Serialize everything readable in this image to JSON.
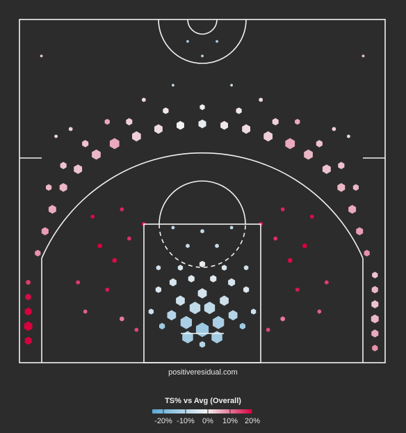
{
  "credit": "positiveresidual.com",
  "legend": {
    "title": "TS% vs Avg (Overall)",
    "ticks": [
      {
        "value": -20,
        "label": "-20%"
      },
      {
        "value": -10,
        "label": "-10%"
      },
      {
        "value": 0,
        "label": "0%"
      },
      {
        "value": 10,
        "label": "10%"
      },
      {
        "value": 20,
        "label": "20%"
      }
    ],
    "range": [
      -25,
      20
    ],
    "colors": {
      "low": "#5aa8d6",
      "mid": "#f2f2f2",
      "high": "#d7003f"
    }
  },
  "colors": {
    "background": "#2c2c2c",
    "court_lines": "#f2f2f2"
  },
  "chart_data": {
    "type": "hexbin",
    "title": "",
    "xlabel": "",
    "ylabel": "",
    "x_range_ft": [
      -25,
      25
    ],
    "y_range_ft": [
      0,
      47
    ],
    "encoding": "size = shot frequency, color = TS% vs average",
    "hexes": [
      {
        "x": 0,
        "y": 4.5,
        "size": 1.0,
        "ts": -14
      },
      {
        "x": -2.2,
        "y": 5.5,
        "size": 0.9,
        "ts": -12
      },
      {
        "x": 2.2,
        "y": 5.5,
        "size": 0.9,
        "ts": -12
      },
      {
        "x": -4.2,
        "y": 6.5,
        "size": 0.7,
        "ts": -10
      },
      {
        "x": 4.2,
        "y": 6.5,
        "size": 0.7,
        "ts": -10
      },
      {
        "x": -1,
        "y": 7.5,
        "size": 0.85,
        "ts": -8
      },
      {
        "x": 1,
        "y": 7.5,
        "size": 0.85,
        "ts": -8
      },
      {
        "x": -3,
        "y": 8.5,
        "size": 0.7,
        "ts": -6
      },
      {
        "x": 3,
        "y": 8.5,
        "size": 0.7,
        "ts": -6
      },
      {
        "x": 0,
        "y": 9.5,
        "size": 0.7,
        "ts": -5
      },
      {
        "x": -2,
        "y": 3.5,
        "size": 0.85,
        "ts": -13
      },
      {
        "x": 2,
        "y": 3.5,
        "size": 0.85,
        "ts": -13
      },
      {
        "x": 0,
        "y": 2.5,
        "size": 0.45,
        "ts": -10
      },
      {
        "x": -5.5,
        "y": 5,
        "size": 0.45,
        "ts": -14
      },
      {
        "x": 5.5,
        "y": 5,
        "size": 0.45,
        "ts": -14
      },
      {
        "x": -7,
        "y": 7,
        "size": 0.4,
        "ts": -6
      },
      {
        "x": 7,
        "y": 7,
        "size": 0.4,
        "ts": -6
      },
      {
        "x": -6,
        "y": 10,
        "size": 0.45,
        "ts": -4
      },
      {
        "x": 6,
        "y": 10,
        "size": 0.45,
        "ts": -4
      },
      {
        "x": -4,
        "y": 11,
        "size": 0.55,
        "ts": -5
      },
      {
        "x": 4,
        "y": 11,
        "size": 0.55,
        "ts": -5
      },
      {
        "x": -1.5,
        "y": 11.5,
        "size": 0.5,
        "ts": -3
      },
      {
        "x": 1.5,
        "y": 11.5,
        "size": 0.5,
        "ts": -3
      },
      {
        "x": 0,
        "y": 13.5,
        "size": 0.45,
        "ts": -2
      },
      {
        "x": -3,
        "y": 13,
        "size": 0.4,
        "ts": -4
      },
      {
        "x": 3,
        "y": 13,
        "size": 0.4,
        "ts": -4
      },
      {
        "x": -6,
        "y": 13,
        "size": 0.35,
        "ts": -6
      },
      {
        "x": 6,
        "y": 13,
        "size": 0.35,
        "ts": -6
      },
      {
        "x": -2,
        "y": 16,
        "size": 0.3,
        "ts": -7
      },
      {
        "x": 2,
        "y": 16,
        "size": 0.3,
        "ts": -7
      },
      {
        "x": 0,
        "y": 18,
        "size": 0.3,
        "ts": -8
      },
      {
        "x": -4,
        "y": 18.5,
        "size": 0.25,
        "ts": -9
      },
      {
        "x": 4,
        "y": 18.5,
        "size": 0.25,
        "ts": -9
      },
      {
        "x": -9,
        "y": 4.5,
        "size": 0.3,
        "ts": 14
      },
      {
        "x": 9,
        "y": 4.5,
        "size": 0.3,
        "ts": 14
      },
      {
        "x": -11,
        "y": 6,
        "size": 0.35,
        "ts": 10
      },
      {
        "x": 11,
        "y": 6,
        "size": 0.35,
        "ts": 10
      },
      {
        "x": -13,
        "y": 10,
        "size": 0.3,
        "ts": 18
      },
      {
        "x": 13,
        "y": 10,
        "size": 0.3,
        "ts": 18
      },
      {
        "x": -12,
        "y": 14,
        "size": 0.35,
        "ts": 19
      },
      {
        "x": 12,
        "y": 14,
        "size": 0.35,
        "ts": 19
      },
      {
        "x": -14,
        "y": 16,
        "size": 0.35,
        "ts": 20
      },
      {
        "x": 14,
        "y": 16,
        "size": 0.35,
        "ts": 20
      },
      {
        "x": -10,
        "y": 17,
        "size": 0.3,
        "ts": 16
      },
      {
        "x": 10,
        "y": 17,
        "size": 0.3,
        "ts": 16
      },
      {
        "x": -8,
        "y": 19,
        "size": 0.3,
        "ts": 18
      },
      {
        "x": 8,
        "y": 19,
        "size": 0.3,
        "ts": 18
      },
      {
        "x": -15,
        "y": 20,
        "size": 0.3,
        "ts": 19
      },
      {
        "x": 15,
        "y": 20,
        "size": 0.3,
        "ts": 19
      },
      {
        "x": -11,
        "y": 21,
        "size": 0.3,
        "ts": 17
      },
      {
        "x": 11,
        "y": 21,
        "size": 0.3,
        "ts": 17
      },
      {
        "x": -17,
        "y": 11,
        "size": 0.3,
        "ts": 15
      },
      {
        "x": 17,
        "y": 11,
        "size": 0.3,
        "ts": 15
      },
      {
        "x": -16,
        "y": 7,
        "size": 0.3,
        "ts": 12
      },
      {
        "x": 16,
        "y": 7,
        "size": 0.3,
        "ts": 12
      },
      {
        "x": -23.8,
        "y": 3,
        "size": 0.55,
        "ts": 20
      },
      {
        "x": -23.8,
        "y": 5,
        "size": 0.65,
        "ts": 20
      },
      {
        "x": -23.8,
        "y": 7,
        "size": 0.55,
        "ts": 20
      },
      {
        "x": -23.8,
        "y": 9,
        "size": 0.45,
        "ts": 19
      },
      {
        "x": -23.8,
        "y": 11,
        "size": 0.35,
        "ts": 15
      },
      {
        "x": 23.6,
        "y": 2,
        "size": 0.45,
        "ts": 8
      },
      {
        "x": 23.6,
        "y": 4,
        "size": 0.55,
        "ts": 6
      },
      {
        "x": 23.6,
        "y": 6,
        "size": 0.6,
        "ts": 5
      },
      {
        "x": 23.6,
        "y": 8,
        "size": 0.55,
        "ts": 4
      },
      {
        "x": 23.6,
        "y": 10,
        "size": 0.5,
        "ts": 5
      },
      {
        "x": 23.6,
        "y": 12,
        "size": 0.45,
        "ts": 4
      },
      {
        "x": -22.5,
        "y": 15,
        "size": 0.45,
        "ts": 8
      },
      {
        "x": 22.5,
        "y": 15,
        "size": 0.45,
        "ts": 8
      },
      {
        "x": -21.5,
        "y": 18,
        "size": 0.55,
        "ts": 7
      },
      {
        "x": 21.5,
        "y": 18,
        "size": 0.55,
        "ts": 7
      },
      {
        "x": -20.5,
        "y": 21,
        "size": 0.6,
        "ts": 6
      },
      {
        "x": 20.5,
        "y": 21,
        "size": 0.6,
        "ts": 6
      },
      {
        "x": -19,
        "y": 24,
        "size": 0.6,
        "ts": 5
      },
      {
        "x": 19,
        "y": 24,
        "size": 0.6,
        "ts": 5
      },
      {
        "x": -17,
        "y": 26.5,
        "size": 0.65,
        "ts": 4
      },
      {
        "x": 17,
        "y": 26.5,
        "size": 0.65,
        "ts": 4
      },
      {
        "x": -14.5,
        "y": 28.5,
        "size": 0.7,
        "ts": 5
      },
      {
        "x": 14.5,
        "y": 28.5,
        "size": 0.7,
        "ts": 5
      },
      {
        "x": -12,
        "y": 30,
        "size": 0.75,
        "ts": 6
      },
      {
        "x": 12,
        "y": 30,
        "size": 0.75,
        "ts": 6
      },
      {
        "x": -9,
        "y": 31,
        "size": 0.7,
        "ts": 3
      },
      {
        "x": 9,
        "y": 31,
        "size": 0.7,
        "ts": 3
      },
      {
        "x": -6,
        "y": 32,
        "size": 0.65,
        "ts": 2
      },
      {
        "x": 6,
        "y": 32,
        "size": 0.65,
        "ts": 2
      },
      {
        "x": -3,
        "y": 32.5,
        "size": 0.6,
        "ts": 0
      },
      {
        "x": 0,
        "y": 32.7,
        "size": 0.6,
        "ts": -2
      },
      {
        "x": 3,
        "y": 32.5,
        "size": 0.6,
        "ts": 1
      },
      {
        "x": -19,
        "y": 27,
        "size": 0.5,
        "ts": 4
      },
      {
        "x": 19,
        "y": 27,
        "size": 0.5,
        "ts": 4
      },
      {
        "x": -21,
        "y": 24,
        "size": 0.45,
        "ts": 5
      },
      {
        "x": 21,
        "y": 24,
        "size": 0.45,
        "ts": 5
      },
      {
        "x": -16,
        "y": 30,
        "size": 0.5,
        "ts": 4
      },
      {
        "x": 16,
        "y": 30,
        "size": 0.5,
        "ts": 4
      },
      {
        "x": -10,
        "y": 33,
        "size": 0.5,
        "ts": 3
      },
      {
        "x": 10,
        "y": 33,
        "size": 0.5,
        "ts": 3
      },
      {
        "x": -5,
        "y": 34.5,
        "size": 0.45,
        "ts": 1
      },
      {
        "x": 5,
        "y": 34.5,
        "size": 0.45,
        "ts": 1
      },
      {
        "x": 0,
        "y": 35,
        "size": 0.4,
        "ts": -1
      },
      {
        "x": -13,
        "y": 33,
        "size": 0.4,
        "ts": 6
      },
      {
        "x": 13,
        "y": 33,
        "size": 0.4,
        "ts": 6
      },
      {
        "x": -18,
        "y": 32,
        "size": 0.3,
        "ts": 3
      },
      {
        "x": 18,
        "y": 32,
        "size": 0.3,
        "ts": 3
      },
      {
        "x": -8,
        "y": 36,
        "size": 0.3,
        "ts": 2
      },
      {
        "x": 8,
        "y": 36,
        "size": 0.3,
        "ts": 2
      },
      {
        "x": -4,
        "y": 38,
        "size": 0.2,
        "ts": -6
      },
      {
        "x": 4,
        "y": 38,
        "size": 0.2,
        "ts": -6
      },
      {
        "x": 0,
        "y": 42,
        "size": 0.2,
        "ts": -10
      },
      {
        "x": -2,
        "y": 44,
        "size": 0.2,
        "ts": -12
      },
      {
        "x": 2,
        "y": 44,
        "size": 0.2,
        "ts": -12
      },
      {
        "x": -20,
        "y": 31,
        "size": 0.25,
        "ts": 2
      },
      {
        "x": 20,
        "y": 31,
        "size": 0.25,
        "ts": 2
      },
      {
        "x": -22,
        "y": 42,
        "size": 0.2,
        "ts": 4
      },
      {
        "x": 22,
        "y": 42,
        "size": 0.2,
        "ts": 4
      }
    ]
  }
}
